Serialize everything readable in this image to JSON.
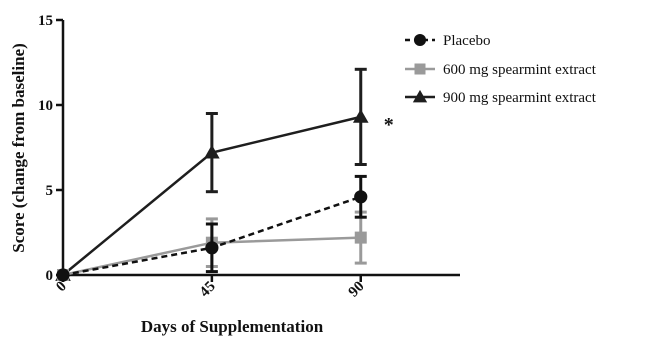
{
  "chart_data": {
    "type": "line",
    "xlabel": "Days of Supplementation",
    "ylabel": "Score (change from baseline)",
    "x": [
      0,
      45,
      90
    ],
    "x_tick_labels": [
      "0",
      "45",
      "90"
    ],
    "xlim": [
      0,
      120
    ],
    "ylim": [
      0,
      15
    ],
    "y_tick_labels": [
      "0",
      "5",
      "10",
      "15"
    ],
    "grid": false,
    "legend_position": "top-right",
    "series": [
      {
        "name": "Placebo",
        "values": [
          0,
          1.6,
          4.6
        ],
        "error": [
          0,
          1.4,
          1.2
        ],
        "color": "#111111",
        "marker": "circle",
        "line_style": "dashed"
      },
      {
        "name": "600 mg spearmint extract",
        "values": [
          0,
          1.9,
          2.2
        ],
        "error": [
          0,
          1.4,
          1.5
        ],
        "color": "#9a9a9a",
        "marker": "square",
        "line_style": "solid"
      },
      {
        "name": "900 mg spearmint extract",
        "values": [
          0,
          7.2,
          9.3
        ],
        "error": [
          0,
          2.3,
          2.8
        ],
        "color": "#1e1e1e",
        "marker": "triangle",
        "line_style": "solid"
      }
    ],
    "annotations": [
      {
        "text": "*",
        "x": 90
      }
    ]
  }
}
